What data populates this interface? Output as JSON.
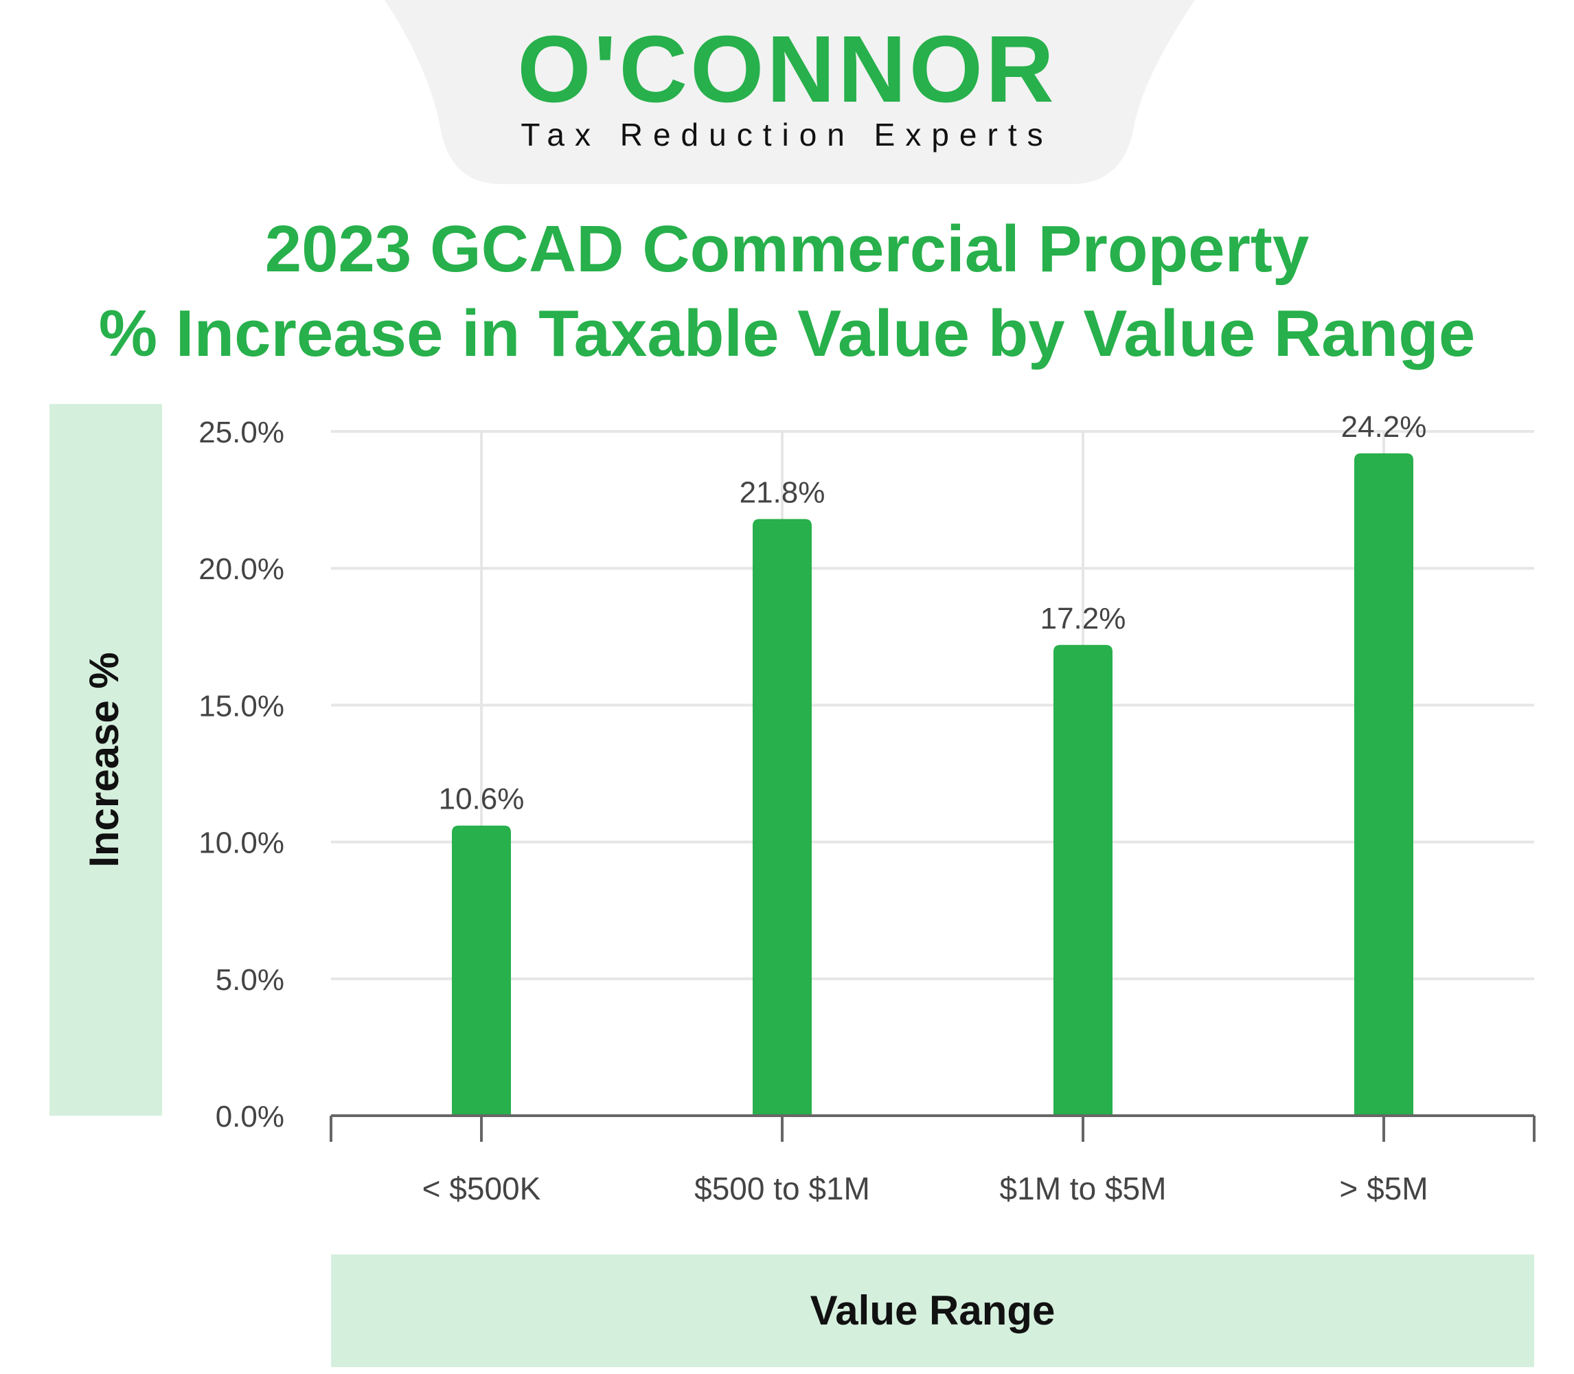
{
  "brand": {
    "name": "O'CONNOR",
    "tagline": "Tax Reduction Experts",
    "color": "#27B04B",
    "header_bg": "#F2F2F2"
  },
  "colors": {
    "bar": "#27B04B",
    "title": "#27B04B",
    "axis_title_bg": "#D5EFDD",
    "grid": "#E6E6E6",
    "axis": "#666666",
    "tick_text": "#444444",
    "data_label_text": "#444444",
    "axis_title_text": "#111111"
  },
  "chart_data": {
    "type": "bar",
    "title_lines": [
      "2023 GCAD Commercial Property",
      "% Increase in Taxable Value by Value Range"
    ],
    "xlabel": "Value Range",
    "ylabel": "Increase %",
    "categories": [
      "< $500K",
      "$500 to $1M",
      "$1M to $5M",
      "> $5M"
    ],
    "values": [
      10.6,
      21.8,
      17.2,
      24.2
    ],
    "data_labels": [
      "10.6%",
      "21.8%",
      "17.2%",
      "24.2%"
    ],
    "ylim": [
      0,
      25
    ],
    "yticks": [
      0,
      5,
      10,
      15,
      20,
      25
    ],
    "ytick_labels": [
      "0.0%",
      "5.0%",
      "10.0%",
      "15.0%",
      "20.0%",
      "25.0%"
    ],
    "grid": true,
    "legend": "none"
  }
}
